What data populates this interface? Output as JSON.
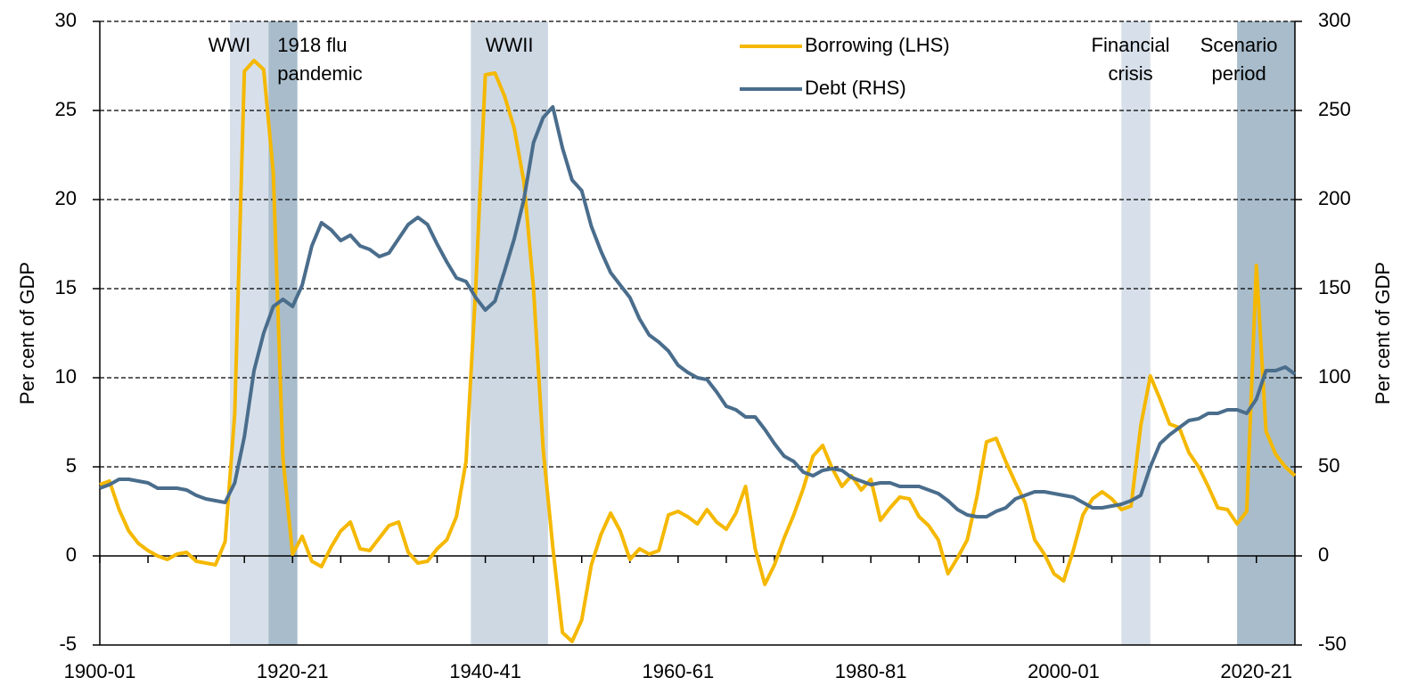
{
  "chart_data": {
    "type": "line",
    "x": [
      1900,
      1901,
      1902,
      1903,
      1904,
      1905,
      1906,
      1907,
      1908,
      1909,
      1910,
      1911,
      1912,
      1913,
      1914,
      1915,
      1916,
      1917,
      1918,
      1919,
      1920,
      1921,
      1922,
      1923,
      1924,
      1925,
      1926,
      1927,
      1928,
      1929,
      1930,
      1931,
      1932,
      1933,
      1934,
      1935,
      1936,
      1937,
      1938,
      1939,
      1940,
      1941,
      1942,
      1943,
      1944,
      1945,
      1946,
      1947,
      1948,
      1949,
      1950,
      1951,
      1952,
      1953,
      1954,
      1955,
      1956,
      1957,
      1958,
      1959,
      1960,
      1961,
      1962,
      1963,
      1964,
      1965,
      1966,
      1967,
      1968,
      1969,
      1970,
      1971,
      1972,
      1973,
      1974,
      1975,
      1976,
      1977,
      1978,
      1979,
      1980,
      1981,
      1982,
      1983,
      1984,
      1985,
      1986,
      1987,
      1988,
      1989,
      1990,
      1991,
      1992,
      1993,
      1994,
      1995,
      1996,
      1997,
      1998,
      1999,
      2000,
      2001,
      2002,
      2003,
      2004,
      2005,
      2006,
      2007,
      2008,
      2009,
      2010,
      2011,
      2012,
      2013,
      2014,
      2015,
      2016,
      2017,
      2018,
      2019,
      2020,
      2021,
      2022,
      2023,
      2024
    ],
    "series": [
      {
        "name": "Borrowing (LHS)",
        "color": "#f5b800",
        "axis": "y",
        "values": [
          4.0,
          4.2,
          2.6,
          1.4,
          0.7,
          0.3,
          0,
          -0.2,
          0.1,
          0.2,
          -0.3,
          -0.4,
          -0.5,
          0.8,
          8,
          27.2,
          27.8,
          27.3,
          21.5,
          5.5,
          0.1,
          1.1,
          -0.3,
          -0.6,
          0.5,
          1.4,
          1.9,
          0.4,
          0.3,
          1.0,
          1.7,
          1.9,
          0.2,
          -0.4,
          -0.3,
          0.4,
          0.9,
          2.2,
          5.3,
          15,
          27.0,
          27.1,
          25.8,
          24.0,
          21.0,
          15,
          6,
          0.5,
          -4.3,
          -4.8,
          -3.6,
          -0.5,
          1.2,
          2.4,
          1.4,
          -0.2,
          0.4,
          0.1,
          0.3,
          2.3,
          2.5,
          2.2,
          1.8,
          2.6,
          1.9,
          1.5,
          2.4,
          3.9,
          0.4,
          -1.6,
          -0.5,
          1.0,
          2.3,
          3.8,
          5.6,
          6.2,
          4.9,
          3.9,
          4.5,
          3.7,
          4.3,
          2.0,
          2.7,
          3.3,
          3.2,
          2.2,
          1.7,
          0.9,
          -1.0,
          -0.1,
          0.9,
          3.3,
          6.4,
          6.6,
          5.3,
          4.1,
          3.0,
          0.9,
          0.1,
          -1.0,
          -1.4,
          0.3,
          2.3,
          3.2,
          3.6,
          3.2,
          2.6,
          2.8,
          7.3,
          10.1,
          8.8,
          7.4,
          7.2,
          5.8,
          5.0,
          3.9,
          2.7,
          2.6,
          1.8,
          2.5,
          16.3,
          7.0,
          5.7,
          5.0,
          4.5
        ]
      },
      {
        "name": "Debt (RHS)",
        "color": "#4a6d8c",
        "axis": "y2",
        "values": [
          38,
          40,
          43,
          43,
          42,
          41,
          38,
          38,
          38,
          37,
          34,
          32,
          31,
          30,
          41,
          67,
          104,
          125,
          140,
          144,
          140,
          152,
          174,
          187,
          183,
          177,
          180,
          174,
          172,
          168,
          170,
          178,
          186,
          190,
          186,
          175,
          165,
          156,
          154,
          145,
          138,
          143,
          160,
          178,
          200,
          232,
          246,
          252,
          229,
          211,
          205,
          185,
          171,
          159,
          152,
          145,
          133,
          124,
          120,
          115,
          107,
          103,
          100,
          99,
          92,
          84,
          82,
          78,
          78,
          71,
          63,
          56,
          53,
          47,
          45,
          48,
          49,
          48,
          44,
          42,
          40,
          41,
          41,
          39,
          39,
          39,
          37,
          35,
          31,
          26,
          23,
          22,
          22,
          25,
          27,
          32,
          34,
          36,
          36,
          35,
          34,
          33,
          30,
          27,
          27,
          28,
          29,
          31,
          34,
          50,
          63,
          68,
          72,
          76,
          77,
          80,
          80,
          82,
          82,
          80,
          88,
          104,
          104,
          106,
          102
        ]
      }
    ],
    "xlim": [
      1900,
      2024
    ],
    "xticks": [
      {
        "value": 1900,
        "label": "1900-01"
      },
      {
        "value": 1920,
        "label": "1920-21"
      },
      {
        "value": 1940,
        "label": "1940-41"
      },
      {
        "value": 1960,
        "label": "1960-61"
      },
      {
        "value": 1980,
        "label": "1980-81"
      },
      {
        "value": 2000,
        "label": "2000-01"
      },
      {
        "value": 2020,
        "label": "2020-21"
      }
    ],
    "xminorticks": [
      1905,
      1910,
      1915,
      1925,
      1930,
      1935,
      1945,
      1950,
      1955,
      1965,
      1970,
      1975,
      1985,
      1990,
      1995,
      2005,
      2010,
      2015
    ],
    "ylim": [
      -5,
      30
    ],
    "yticks": [
      -5,
      0,
      5,
      10,
      15,
      20,
      25,
      30
    ],
    "y2lim": [
      -50,
      300
    ],
    "y2ticks": [
      -50,
      0,
      50,
      100,
      150,
      200,
      250,
      300
    ],
    "ylabel": "Per cent of GDP",
    "y2label": "Per cent of GDP",
    "grid": true,
    "legend": "top-center",
    "spans": [
      {
        "label": [
          "WWI"
        ],
        "start": 1913.5,
        "end": 1917.5,
        "color": "#d7e0ea"
      },
      {
        "label": [
          "1918 flu",
          "pandemic"
        ],
        "start": 1917.5,
        "end": 1920.5,
        "color": "#a8bccb"
      },
      {
        "label": [
          "WWII"
        ],
        "start": 1938.5,
        "end": 1946.5,
        "color": "#cdd8e3"
      },
      {
        "label": [
          "Financial",
          "crisis"
        ],
        "start": 2006,
        "end": 2009,
        "color": "#d7e0ea"
      },
      {
        "label": [
          "Scenario",
          "period"
        ],
        "start": 2018,
        "end": 2024,
        "color": "#a8bccb"
      }
    ]
  }
}
